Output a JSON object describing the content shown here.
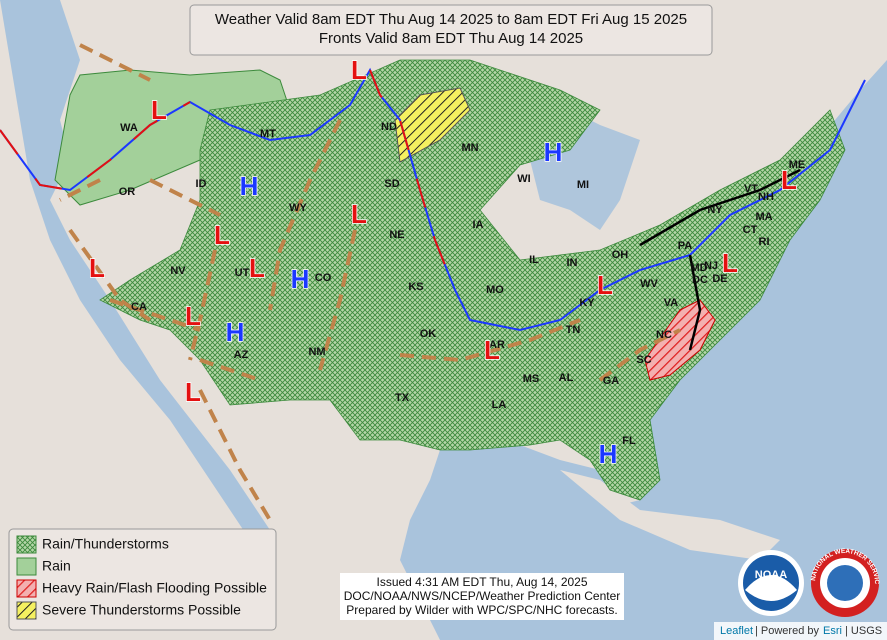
{
  "title": [
    "Weather Valid 8am EDT Thu Aug 14 2025 to 8am EDT Fri Aug 15 2025",
    "Fronts Valid 8am EDT Thu Aug 14 2025"
  ],
  "states": [
    "WA",
    "OR",
    "ID",
    "MT",
    "WY",
    "ND",
    "SD",
    "MN",
    "WI",
    "MI",
    "NE",
    "IA",
    "IL",
    "IN",
    "OH",
    "KS",
    "MO",
    "KY",
    "NV",
    "UT",
    "CO",
    "CA",
    "AZ",
    "NM",
    "OK",
    "TX",
    "AR",
    "TN",
    "NC",
    "VA",
    "WV",
    "PA",
    "NY",
    "VT",
    "NH",
    "ME",
    "MA",
    "CT",
    "RI",
    "NJ",
    "MD",
    "DE",
    "DC",
    "MS",
    "AL",
    "GA",
    "SC",
    "LA",
    "FL"
  ],
  "pressure_centers": [
    "L",
    "L",
    "H",
    "L",
    "L",
    "L",
    "L",
    "H",
    "L",
    "H",
    "L",
    "L",
    "L",
    "L",
    "L",
    "H",
    "H"
  ],
  "legend": [
    "Rain/Thunderstorms",
    "Rain",
    "Heavy Rain/Flash Flooding Possible",
    "Severe Thunderstorms Possible"
  ],
  "issued": [
    "Issued  4:31 AM EDT  Thu, Aug 14, 2025",
    "DOC/NOAA/NWS/NCEP/Weather Prediction Center",
    "Prepared by Wilder with WPC/SPC/NHC forecasts."
  ],
  "logos": {
    "noaa": "NOAA",
    "nws": "NATIONAL WEATHER SERVICE"
  },
  "attribution": [
    "Leaflet",
    "| Powered by",
    "Esri",
    "| USGS"
  ]
}
